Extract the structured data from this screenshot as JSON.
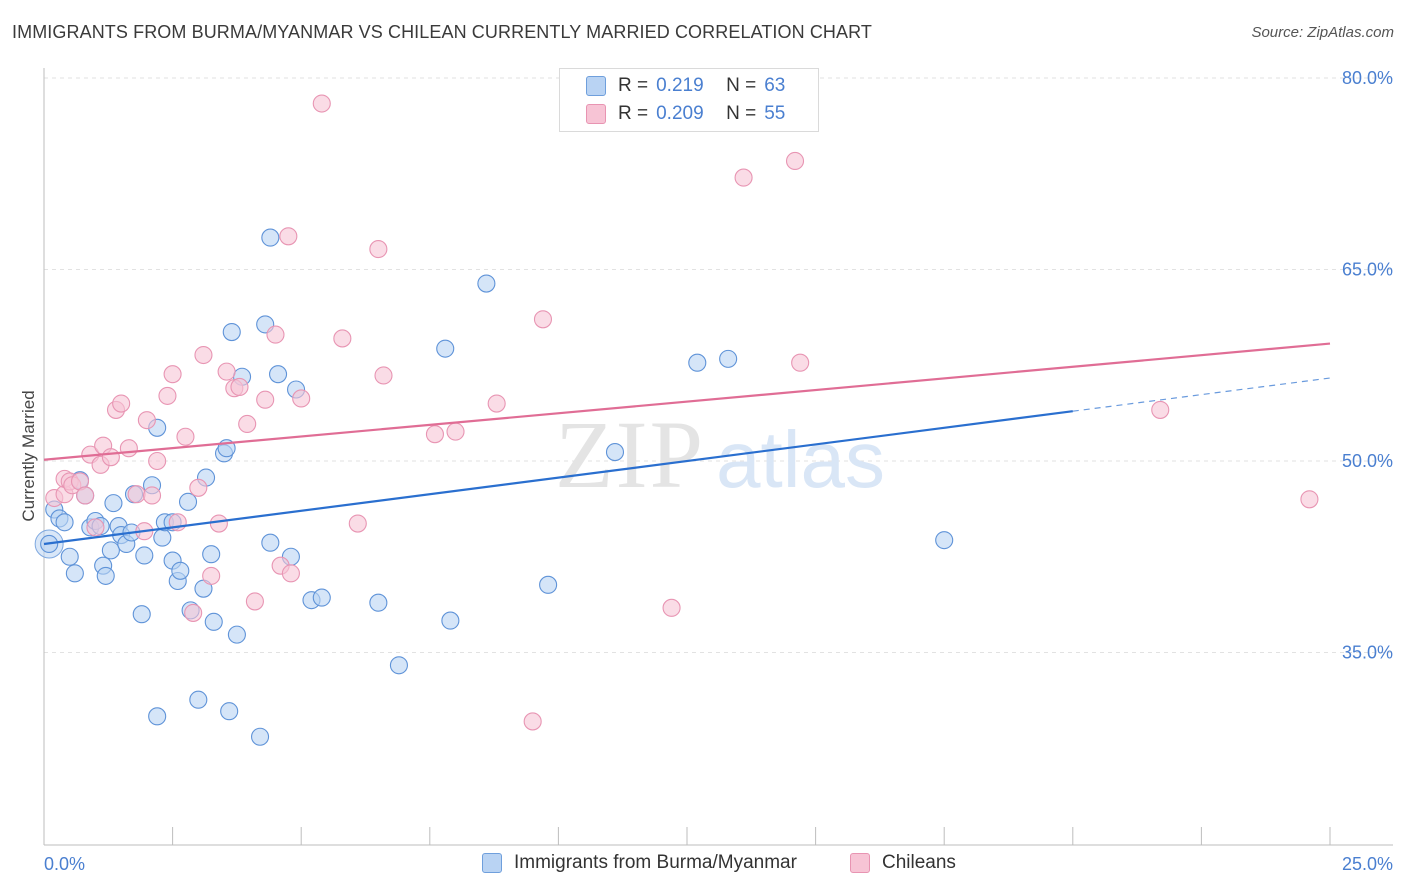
{
  "title": "IMMIGRANTS FROM BURMA/MYANMAR VS CHILEAN CURRENTLY MARRIED CORRELATION CHART",
  "source": "Source: ZipAtlas.com",
  "watermark": {
    "zip": "ZIP",
    "atlas": "atlas"
  },
  "colors": {
    "blue": "#4a7fd0",
    "blue_fill": "#b9d3f3",
    "blue_line": "#2a6fcf",
    "pink_fill": "#f7c4d5",
    "pink_line": "#e06d95",
    "grid": "#e2e2e2",
    "axis": "#bdbdbd"
  },
  "legend": {
    "rows": [
      {
        "r_label": "R =",
        "r_value": "0.219",
        "n_label": "N =",
        "n_value": "63",
        "color": "blue"
      },
      {
        "r_label": "R =",
        "r_value": "0.209",
        "n_label": "N =",
        "n_value": "55",
        "color": "pink"
      }
    ]
  },
  "bottom_legend": [
    "Immigrants from Burma/Myanmar",
    "Chileans"
  ],
  "chart_data": {
    "type": "scatter",
    "title": "IMMIGRANTS FROM BURMA/MYANMAR VS CHILEAN CURRENTLY MARRIED CORRELATION CHART",
    "ylabel": "Currently Married",
    "xlabel": "",
    "xlim": [
      0,
      25
    ],
    "ylim": [
      21,
      82.5
    ],
    "x_tick_labels": [
      {
        "value": 0,
        "label": "0.0%"
      },
      {
        "value": 25,
        "label": "25.0%"
      }
    ],
    "y_tick_labels": [
      {
        "value": 35,
        "label": "35.0%"
      },
      {
        "value": 50,
        "label": "50.0%"
      },
      {
        "value": 65,
        "label": "65.0%"
      },
      {
        "value": 80,
        "label": "80.0%"
      }
    ],
    "grid": true,
    "legend_position": "top-center",
    "series": [
      {
        "name": "Immigrants from Burma/Myanmar",
        "color": "#b9d3f3",
        "trend": {
          "x": [
            0,
            20
          ],
          "y": [
            43.5,
            53.9
          ],
          "dashed_to": [
            25,
            56.5
          ]
        },
        "points": [
          [
            0.1,
            43.5
          ],
          [
            0.2,
            46.2
          ],
          [
            0.3,
            45.5
          ],
          [
            0.4,
            45.2
          ],
          [
            0.5,
            42.5
          ],
          [
            0.6,
            41.2
          ],
          [
            0.7,
            48.5
          ],
          [
            0.8,
            47.3
          ],
          [
            0.9,
            44.8
          ],
          [
            1.0,
            45.3
          ],
          [
            1.1,
            44.9
          ],
          [
            1.15,
            41.8
          ],
          [
            1.3,
            43.0
          ],
          [
            1.35,
            46.7
          ],
          [
            1.45,
            44.9
          ],
          [
            1.5,
            44.2
          ],
          [
            1.6,
            43.5
          ],
          [
            1.7,
            44.4
          ],
          [
            1.75,
            47.4
          ],
          [
            1.9,
            38.0
          ],
          [
            1.95,
            42.6
          ],
          [
            2.1,
            48.1
          ],
          [
            2.2,
            52.6
          ],
          [
            2.3,
            44.0
          ],
          [
            2.35,
            45.2
          ],
          [
            2.5,
            42.2
          ],
          [
            2.6,
            40.6
          ],
          [
            2.65,
            41.4
          ],
          [
            2.8,
            46.8
          ],
          [
            2.85,
            38.3
          ],
          [
            3.0,
            31.3
          ],
          [
            3.1,
            40.0
          ],
          [
            3.15,
            48.7
          ],
          [
            3.25,
            42.7
          ],
          [
            3.3,
            37.4
          ],
          [
            3.5,
            50.6
          ],
          [
            3.55,
            51.0
          ],
          [
            3.65,
            60.1
          ],
          [
            3.75,
            36.4
          ],
          [
            3.85,
            56.6
          ],
          [
            4.2,
            28.4
          ],
          [
            4.3,
            60.7
          ],
          [
            4.4,
            67.5
          ],
          [
            4.4,
            43.6
          ],
          [
            4.55,
            56.8
          ],
          [
            4.8,
            42.5
          ],
          [
            4.9,
            55.6
          ],
          [
            5.2,
            39.1
          ],
          [
            5.4,
            39.3
          ],
          [
            6.5,
            38.9
          ],
          [
            6.9,
            34.0
          ],
          [
            7.8,
            58.8
          ],
          [
            7.9,
            37.5
          ],
          [
            8.6,
            63.9
          ],
          [
            9.8,
            40.3
          ],
          [
            11.1,
            50.7
          ],
          [
            12.7,
            57.7
          ],
          [
            13.3,
            58.0
          ],
          [
            17.5,
            43.8
          ],
          [
            2.2,
            30.0
          ],
          [
            3.6,
            30.4
          ],
          [
            2.5,
            45.2
          ],
          [
            1.2,
            41.0
          ]
        ]
      },
      {
        "name": "Chileans",
        "color": "#f7c4d5",
        "trend": {
          "x": [
            0,
            25
          ],
          "y": [
            50.1,
            59.2
          ]
        },
        "points": [
          [
            0.2,
            47.1
          ],
          [
            0.4,
            47.4
          ],
          [
            0.4,
            48.6
          ],
          [
            0.5,
            48.4
          ],
          [
            0.55,
            48.1
          ],
          [
            0.7,
            48.4
          ],
          [
            0.8,
            47.3
          ],
          [
            0.9,
            50.5
          ],
          [
            1.0,
            44.8
          ],
          [
            1.1,
            49.7
          ],
          [
            1.15,
            51.2
          ],
          [
            1.3,
            50.3
          ],
          [
            1.4,
            54.0
          ],
          [
            1.5,
            54.5
          ],
          [
            1.65,
            51.0
          ],
          [
            1.8,
            47.4
          ],
          [
            1.95,
            44.5
          ],
          [
            2.0,
            53.2
          ],
          [
            2.1,
            47.3
          ],
          [
            2.2,
            50.0
          ],
          [
            2.4,
            55.1
          ],
          [
            2.5,
            56.8
          ],
          [
            2.6,
            45.2
          ],
          [
            2.75,
            51.9
          ],
          [
            2.9,
            38.1
          ],
          [
            3.0,
            47.9
          ],
          [
            3.1,
            58.3
          ],
          [
            3.25,
            41.0
          ],
          [
            3.4,
            45.1
          ],
          [
            3.55,
            57.0
          ],
          [
            3.7,
            55.7
          ],
          [
            3.8,
            55.8
          ],
          [
            3.95,
            52.9
          ],
          [
            4.1,
            39.0
          ],
          [
            4.3,
            54.8
          ],
          [
            4.5,
            59.9
          ],
          [
            4.6,
            41.8
          ],
          [
            4.75,
            67.6
          ],
          [
            4.8,
            41.2
          ],
          [
            5.0,
            54.9
          ],
          [
            5.8,
            59.6
          ],
          [
            6.1,
            45.1
          ],
          [
            6.5,
            66.6
          ],
          [
            6.6,
            56.7
          ],
          [
            7.6,
            52.1
          ],
          [
            8.0,
            52.3
          ],
          [
            8.8,
            54.5
          ],
          [
            9.5,
            29.6
          ],
          [
            9.7,
            61.1
          ],
          [
            12.2,
            38.5
          ],
          [
            13.6,
            72.2
          ],
          [
            14.6,
            73.5
          ],
          [
            14.7,
            57.7
          ],
          [
            21.7,
            54.0
          ],
          [
            24.6,
            47.0
          ]
        ]
      }
    ],
    "extra_point_blue_big": [
      0.1,
      43.5
    ],
    "extra_point_pink_top": [
      5.4,
      78.0
    ]
  }
}
